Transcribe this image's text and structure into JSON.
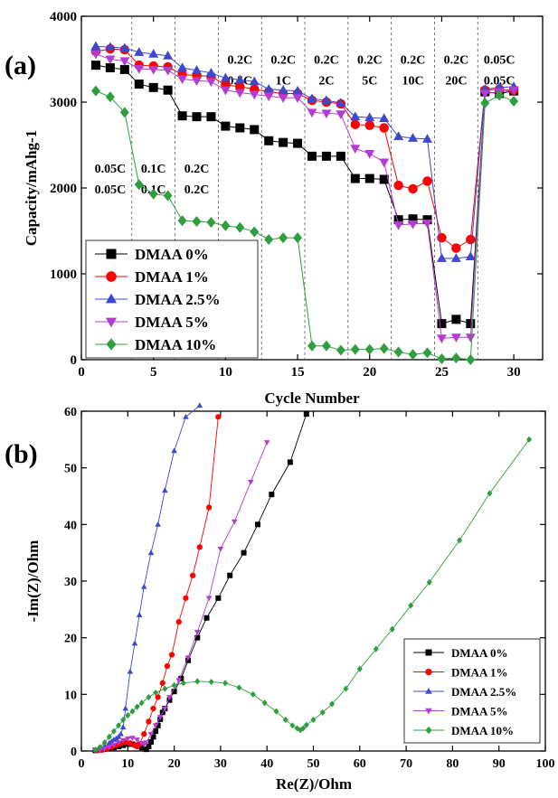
{
  "colors": {
    "dmaa_0": "#000000",
    "dmaa_1": "#ff0000",
    "dmaa_2_5": "#3f48cc",
    "dmaa_5": "#b43cd2",
    "dmaa_10": "#2e9e3e"
  },
  "chart_data": [
    {
      "panel": "(a)",
      "type": "scatter",
      "xlabel": "Cycle Number",
      "ylabel": "Capacity/mAhg-1",
      "xlim": [
        0,
        32
      ],
      "ylim": [
        0,
        4000
      ],
      "xticks": [
        0,
        5,
        10,
        15,
        20,
        25,
        30
      ],
      "yticks": [
        0,
        1000,
        2000,
        3000,
        4000
      ],
      "grid": false,
      "legend": "bottom-left",
      "separators": [
        3.5,
        6.5,
        9.5,
        12.5,
        15.5,
        18.5,
        21.5,
        24.5,
        27.5
      ],
      "rate_labels": [
        {
          "x": 2.0,
          "y": 2180,
          "line1": "0.05C",
          "line2": "0.05C"
        },
        {
          "x": 5.0,
          "y": 2180,
          "line1": "0.1C",
          "line2": "0.1C"
        },
        {
          "x": 8.0,
          "y": 2180,
          "line1": "0.2C",
          "line2": "0.2C"
        },
        {
          "x": 11.0,
          "y": 3450,
          "line1": "0.2C",
          "line2": "0.5C"
        },
        {
          "x": 14.0,
          "y": 3450,
          "line1": "0.2C",
          "line2": "1C"
        },
        {
          "x": 17.0,
          "y": 3450,
          "line1": "0.2C",
          "line2": "2C"
        },
        {
          "x": 20.0,
          "y": 3450,
          "line1": "0.2C",
          "line2": "5C"
        },
        {
          "x": 23.0,
          "y": 3450,
          "line1": "0.2C",
          "line2": "10C"
        },
        {
          "x": 26.0,
          "y": 3450,
          "line1": "0.2C",
          "line2": "20C"
        },
        {
          "x": 29.0,
          "y": 3450,
          "line1": "0.05C",
          "line2": "0.05C"
        }
      ],
      "x": [
        1,
        2,
        3,
        4,
        5,
        6,
        7,
        8,
        9,
        10,
        11,
        12,
        13,
        14,
        15,
        16,
        17,
        18,
        19,
        20,
        21,
        22,
        23,
        24,
        25,
        26,
        27,
        28,
        29,
        30
      ],
      "series": [
        {
          "name": "DMAA 0%",
          "marker": "square",
          "values": [
            3430,
            3400,
            3380,
            3210,
            3170,
            3140,
            2840,
            2830,
            2830,
            2720,
            2700,
            2680,
            2550,
            2530,
            2520,
            2370,
            2370,
            2370,
            2110,
            2110,
            2100,
            1630,
            1640,
            1630,
            420,
            470,
            420,
            3120,
            3100,
            3130
          ]
        },
        {
          "name": "DMAA 1%",
          "marker": "circle",
          "values": [
            3590,
            3620,
            3610,
            3430,
            3420,
            3410,
            3320,
            3310,
            3300,
            3200,
            3180,
            3150,
            3120,
            3100,
            3100,
            3020,
            3000,
            2980,
            2740,
            2730,
            2700,
            2030,
            1990,
            2080,
            1420,
            1300,
            1400,
            3140,
            3150,
            3140
          ]
        },
        {
          "name": "DMAA 2.5%",
          "marker": "triangle-up",
          "values": [
            3650,
            3640,
            3630,
            3580,
            3560,
            3540,
            3400,
            3370,
            3340,
            3280,
            3260,
            3240,
            3150,
            3140,
            3130,
            3040,
            3020,
            2990,
            2830,
            2820,
            2810,
            2600,
            2580,
            2570,
            1180,
            1180,
            1200,
            3150,
            3170,
            3180
          ]
        },
        {
          "name": "DMAA 5%",
          "marker": "triangle-down",
          "values": [
            3560,
            3500,
            3480,
            3390,
            3380,
            3370,
            3270,
            3250,
            3240,
            3140,
            3110,
            3090,
            3070,
            3050,
            3050,
            2880,
            2870,
            2860,
            2460,
            2400,
            2300,
            1570,
            1580,
            1590,
            250,
            260,
            260,
            3100,
            3120,
            3140
          ]
        },
        {
          "name": "DMAA 10%",
          "marker": "diamond",
          "values": [
            3130,
            3060,
            2880,
            2040,
            1930,
            1910,
            1620,
            1610,
            1600,
            1560,
            1540,
            1490,
            1400,
            1420,
            1420,
            160,
            160,
            110,
            120,
            120,
            130,
            90,
            60,
            80,
            10,
            20,
            0,
            2990,
            3080,
            3010
          ]
        }
      ]
    },
    {
      "panel": "(b)",
      "type": "scatter",
      "xlabel": "Re(Z)/Ohm",
      "ylabel": "-Im(Z)/Ohm",
      "xlim": [
        0,
        100
      ],
      "ylim": [
        0,
        60
      ],
      "xticks": [
        0,
        10,
        20,
        30,
        40,
        50,
        60,
        70,
        80,
        90,
        100
      ],
      "yticks": [
        0,
        10,
        20,
        30,
        40,
        50,
        60
      ],
      "grid": false,
      "legend": "bottom-right",
      "series": [
        {
          "name": "DMAA 0%",
          "marker": "square",
          "x": [
            3,
            4,
            5,
            6,
            7,
            8,
            9,
            10,
            11,
            12,
            13,
            14,
            14.5,
            15,
            15.5,
            16,
            16.5,
            17,
            17.5,
            18,
            19,
            20,
            21.5,
            23,
            25,
            27,
            29.5,
            32,
            35,
            38,
            41,
            45,
            48.5
          ],
          "y": [
            0.1,
            0.2,
            0.3,
            0.4,
            0.6,
            0.8,
            1.0,
            1.2,
            1.2,
            1.0,
            0.6,
            0.3,
            0.8,
            1.6,
            2.5,
            3.5,
            4.5,
            5.6,
            6.8,
            7.5,
            9.0,
            10.5,
            12.8,
            16.0,
            20.0,
            23.5,
            27.0,
            31.0,
            35.0,
            40.0,
            45.3,
            51.0,
            59.5
          ]
        },
        {
          "name": "DMAA 1%",
          "marker": "circle",
          "x": [
            3.5,
            4.5,
            5.5,
            6.5,
            7.5,
            8.5,
            9.5,
            10.5,
            11.5,
            12,
            12.5,
            13.5,
            14.5,
            15.5,
            16.5,
            17.5,
            18.5,
            19.5,
            21,
            22.5,
            24,
            25.5,
            27.5,
            29.5
          ],
          "y": [
            0.1,
            0.2,
            0.4,
            0.7,
            1.0,
            1.3,
            1.5,
            1.4,
            1.0,
            0.8,
            1.2,
            3.0,
            5.2,
            7.5,
            9.5,
            12.0,
            15.0,
            17.0,
            22.8,
            27.0,
            31.0,
            36.0,
            43.0,
            59.0
          ]
        },
        {
          "name": "DMAA 2.5%",
          "marker": "triangle-up",
          "x": [
            3,
            4,
            5,
            6,
            6.5,
            7,
            7.5,
            8,
            8.5,
            9,
            9.5,
            10.5,
            11.5,
            12.5,
            13.5,
            15,
            16.5,
            18,
            20,
            22.5,
            25.5
          ],
          "y": [
            0.2,
            0.5,
            0.9,
            1.4,
            1.7,
            2.0,
            2.2,
            2.5,
            3.0,
            4.2,
            7.5,
            14.0,
            19.0,
            24.0,
            29.0,
            35.0,
            40.0,
            46.0,
            53.0,
            59.0,
            61.0
          ]
        },
        {
          "name": "DMAA 5%",
          "marker": "triangle-down",
          "x": [
            3,
            4,
            5,
            6,
            7,
            8,
            9,
            10,
            11,
            12,
            13,
            13.5,
            14,
            15,
            16,
            17,
            18,
            19,
            21,
            23,
            25,
            27.5,
            30,
            33,
            36.5,
            40
          ],
          "y": [
            0.1,
            0.2,
            0.4,
            0.7,
            1.1,
            1.5,
            1.9,
            2.2,
            2.3,
            2.0,
            1.4,
            1.2,
            1.5,
            3.0,
            4.5,
            6.0,
            7.5,
            9.5,
            12.5,
            16.5,
            21.0,
            27.0,
            35.7,
            40.5,
            47.5,
            54.5
          ]
        },
        {
          "name": "DMAA 10%",
          "marker": "diamond",
          "x": [
            3,
            4,
            5,
            6,
            7,
            8,
            9,
            10,
            11,
            12,
            13,
            14.5,
            16,
            18,
            20,
            22,
            25,
            28,
            31,
            34,
            37,
            39.5,
            42,
            44,
            45.5,
            46.5,
            47.2,
            47.8,
            48.5,
            50,
            52,
            54,
            57,
            60,
            63.5,
            67,
            71,
            75,
            81.5,
            88,
            96.5
          ],
          "y": [
            0.2,
            0.7,
            1.5,
            2.5,
            3.5,
            4.5,
            5.5,
            6.3,
            7.0,
            7.8,
            8.5,
            9.5,
            10.3,
            11.0,
            11.6,
            12.0,
            12.3,
            12.2,
            12.0,
            11.2,
            10.0,
            8.5,
            7.0,
            5.5,
            4.5,
            4.0,
            3.7,
            4.0,
            4.6,
            5.5,
            6.8,
            8.3,
            11.0,
            14.5,
            18.0,
            21.5,
            25.7,
            29.8,
            37.2,
            45.5,
            55.0
          ]
        }
      ]
    }
  ]
}
